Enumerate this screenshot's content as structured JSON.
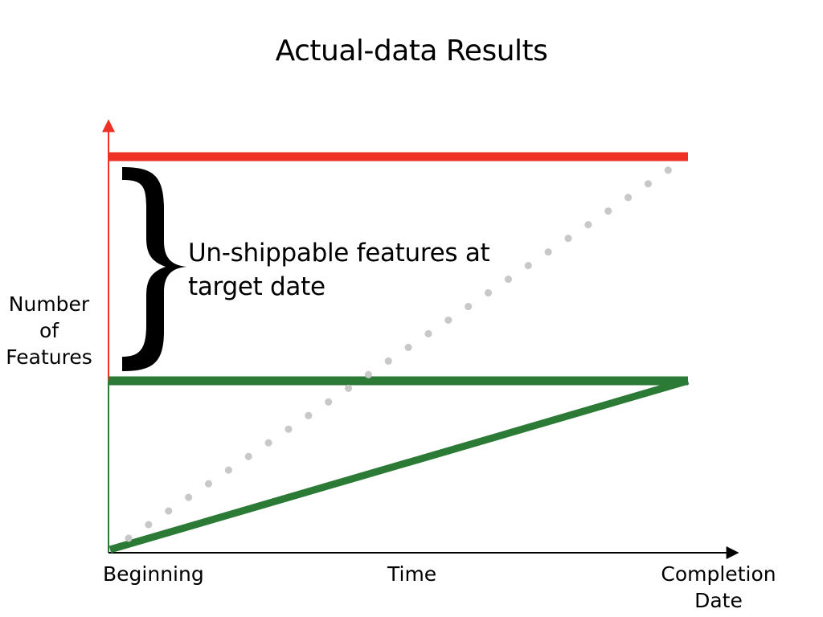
{
  "title": "Actual-data Results",
  "y_axis_label": "Number\nof\nFeatures",
  "x_axis": {
    "start_label": "Beginning",
    "middle_label": "Time",
    "end_label": "Completion\nDate"
  },
  "annotation": "Un-shippable features at target date",
  "colors": {
    "target_line": "#ee3124",
    "actual_line": "#2b7a35",
    "dotted_line": "#c8c8c8",
    "axis": "#000000"
  }
}
